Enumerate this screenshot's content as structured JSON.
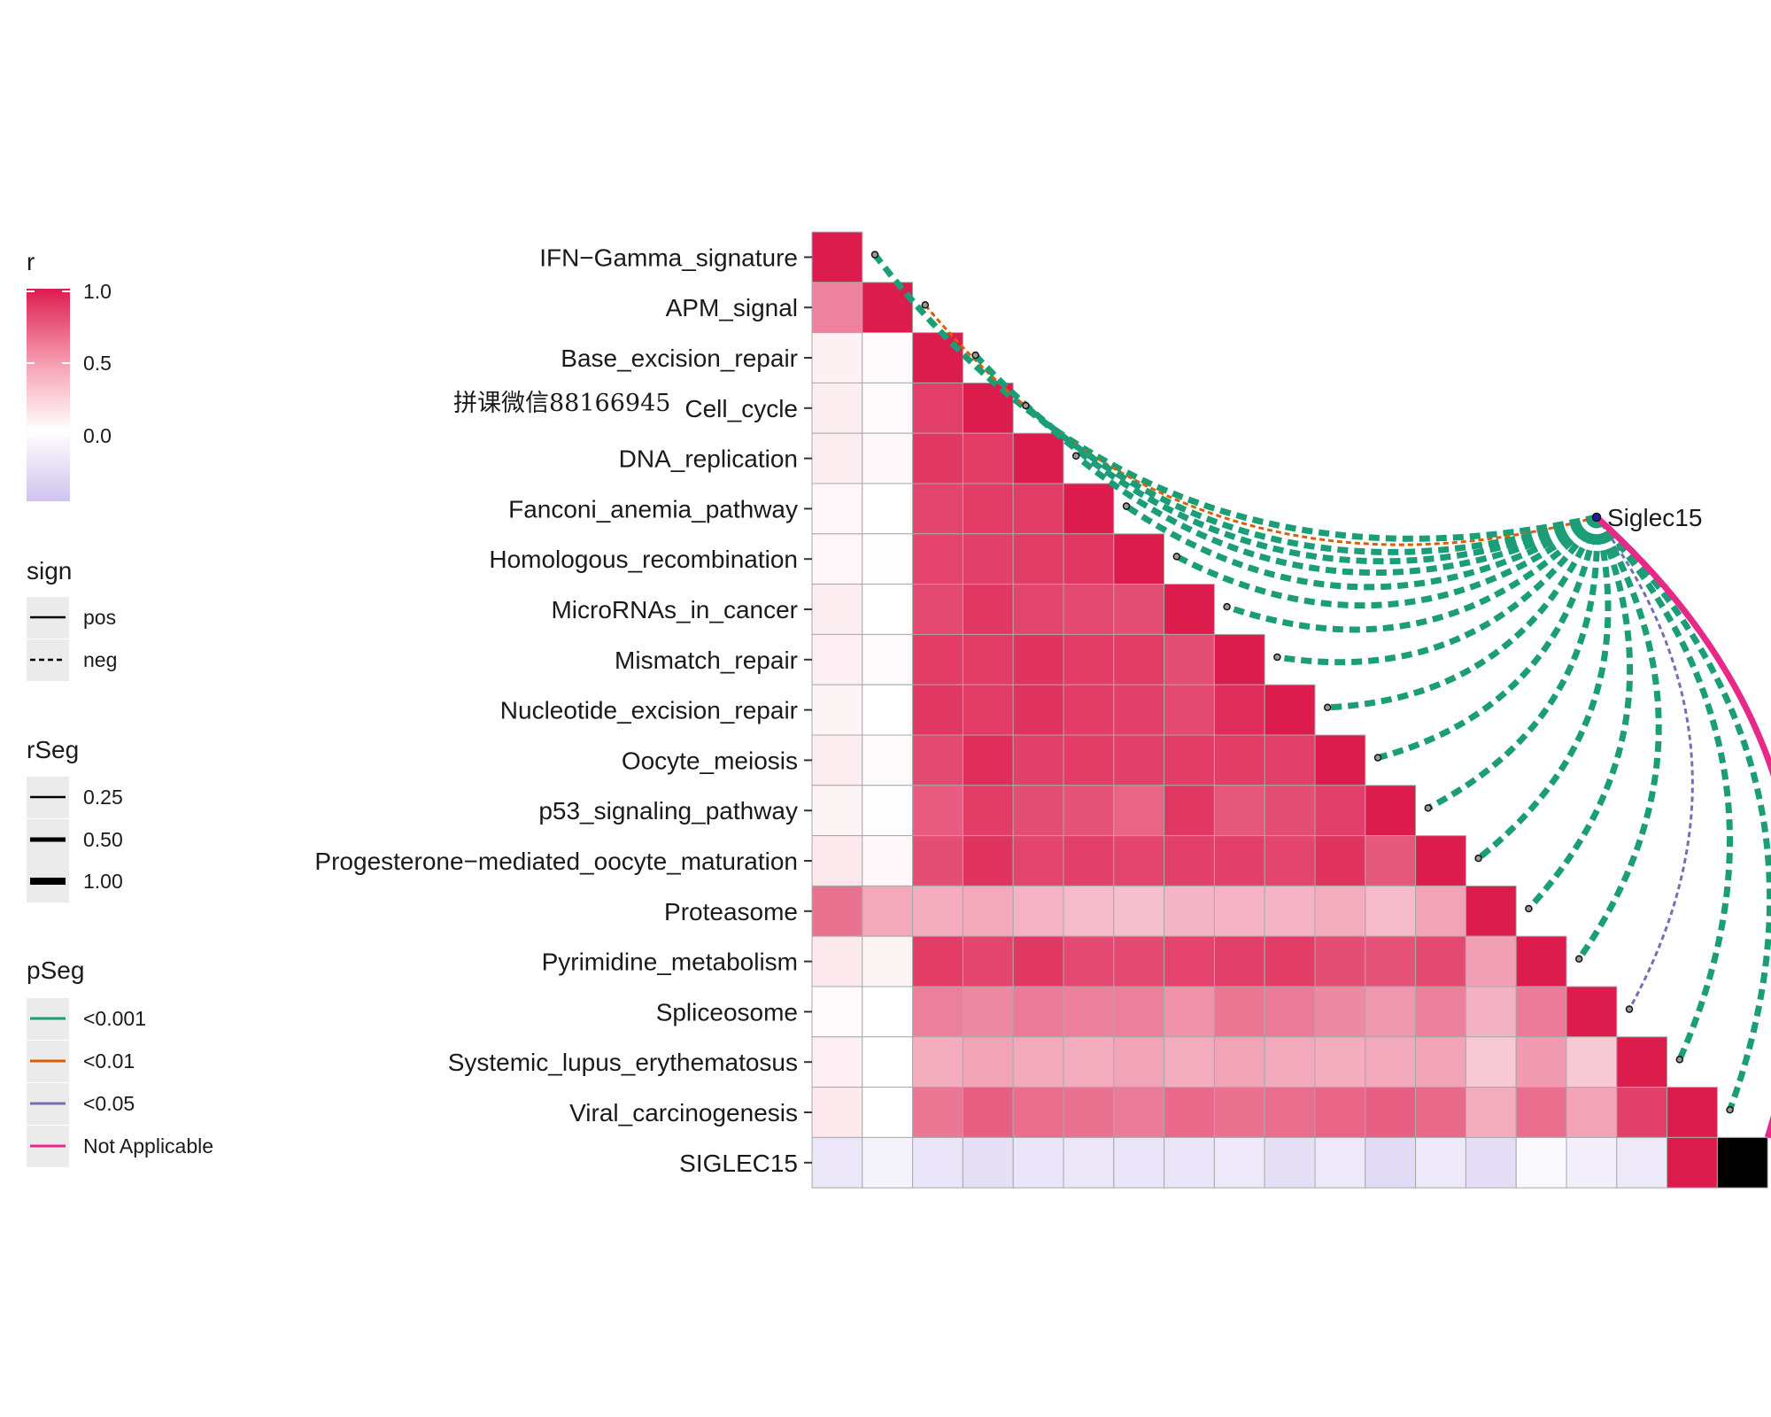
{
  "chart_data": {
    "type": "heatmap",
    "variables": [
      "IFN−Gamma_signature",
      "APM_signal",
      "Base_excision_repair",
      "Cell_cycle",
      "DNA_replication",
      "Fanconi_anemia_pathway",
      "Homologous_recombination",
      "MicroRNAs_in_cancer",
      "Mismatch_repair",
      "Nucleotide_excision_repair",
      "Oocyte_meiosis",
      "p53_signaling_pathway",
      "Progesterone−mediated_oocyte_maturation",
      "Proteasome",
      "Pyrimidine_metabolism",
      "Spliceosome",
      "Systemic_lupus_erythematosus",
      "Viral_carcinogenesis",
      "SIGLEC15"
    ],
    "matrix": [
      [
        1
      ],
      [
        0.55,
        1
      ],
      [
        0.06,
        0.02,
        1
      ],
      [
        0.08,
        0.02,
        0.85,
        1
      ],
      [
        0.08,
        0.03,
        0.88,
        0.86,
        1
      ],
      [
        0.04,
        0.0,
        0.82,
        0.86,
        0.86,
        1
      ],
      [
        0.04,
        -0.02,
        0.83,
        0.84,
        0.86,
        0.88,
        1
      ],
      [
        0.08,
        0.0,
        0.8,
        0.88,
        0.82,
        0.8,
        0.78,
        1
      ],
      [
        0.07,
        0.02,
        0.86,
        0.86,
        0.9,
        0.86,
        0.86,
        0.78,
        1
      ],
      [
        0.05,
        0.0,
        0.88,
        0.86,
        0.9,
        0.86,
        0.84,
        0.8,
        0.92,
        1
      ],
      [
        0.08,
        0.02,
        0.8,
        0.92,
        0.84,
        0.86,
        0.84,
        0.86,
        0.86,
        0.84,
        1
      ],
      [
        0.05,
        -0.02,
        0.72,
        0.86,
        0.78,
        0.76,
        0.68,
        0.88,
        0.74,
        0.78,
        0.84,
        1
      ],
      [
        0.1,
        0.03,
        0.78,
        0.9,
        0.82,
        0.84,
        0.82,
        0.84,
        0.84,
        0.82,
        0.9,
        0.74,
        1
      ],
      [
        0.62,
        0.38,
        0.36,
        0.38,
        0.33,
        0.3,
        0.28,
        0.32,
        0.33,
        0.33,
        0.36,
        0.3,
        0.4,
        1
      ],
      [
        0.1,
        0.05,
        0.86,
        0.82,
        0.88,
        0.8,
        0.8,
        0.83,
        0.84,
        0.86,
        0.78,
        0.76,
        0.8,
        0.42,
        1
      ],
      [
        0.02,
        0.0,
        0.56,
        0.52,
        0.58,
        0.56,
        0.56,
        0.48,
        0.6,
        0.58,
        0.52,
        0.46,
        0.56,
        0.34,
        0.58,
        1
      ],
      [
        0.07,
        0.0,
        0.36,
        0.4,
        0.38,
        0.36,
        0.4,
        0.36,
        0.4,
        0.38,
        0.36,
        0.38,
        0.4,
        0.24,
        0.44,
        0.24,
        1
      ],
      [
        0.1,
        0.0,
        0.6,
        0.7,
        0.64,
        0.62,
        0.58,
        0.66,
        0.62,
        0.64,
        0.68,
        0.7,
        0.66,
        0.36,
        0.64,
        0.4,
        0.84,
        1
      ],
      [
        -0.2,
        -0.1,
        -0.22,
        -0.26,
        -0.22,
        -0.2,
        -0.22,
        -0.22,
        -0.18,
        -0.26,
        -0.18,
        -0.3,
        -0.18,
        -0.28,
        -0.06,
        -0.14,
        -0.18,
        1
      ]
    ],
    "mantel": {
      "source": "Siglec15",
      "links": [
        {
          "to": "IFN−Gamma_signature",
          "r": 1.0,
          "sign": "neg",
          "p": "<0.001"
        },
        {
          "to": "APM_signal",
          "r": 0.25,
          "sign": "neg",
          "p": "<0.01"
        },
        {
          "to": "Base_excision_repair",
          "r": 1.0,
          "sign": "neg",
          "p": "<0.001"
        },
        {
          "to": "Cell_cycle",
          "r": 1.0,
          "sign": "neg",
          "p": "<0.001"
        },
        {
          "to": "DNA_replication",
          "r": 1.0,
          "sign": "neg",
          "p": "<0.001"
        },
        {
          "to": "Fanconi_anemia_pathway",
          "r": 1.0,
          "sign": "neg",
          "p": "<0.001"
        },
        {
          "to": "Homologous_recombination",
          "r": 1.0,
          "sign": "neg",
          "p": "<0.001"
        },
        {
          "to": "MicroRNAs_in_cancer",
          "r": 1.0,
          "sign": "neg",
          "p": "<0.001"
        },
        {
          "to": "Mismatch_repair",
          "r": 1.0,
          "sign": "neg",
          "p": "<0.001"
        },
        {
          "to": "Nucleotide_excision_repair",
          "r": 1.0,
          "sign": "neg",
          "p": "<0.001"
        },
        {
          "to": "Oocyte_meiosis",
          "r": 1.0,
          "sign": "neg",
          "p": "<0.001"
        },
        {
          "to": "p53_signaling_pathway",
          "r": 1.0,
          "sign": "neg",
          "p": "<0.001"
        },
        {
          "to": "Progesterone−mediated_oocyte_maturation",
          "r": 1.0,
          "sign": "neg",
          "p": "<0.001"
        },
        {
          "to": "Proteasome",
          "r": 1.0,
          "sign": "neg",
          "p": "<0.001"
        },
        {
          "to": "Pyrimidine_metabolism",
          "r": 1.0,
          "sign": "neg",
          "p": "<0.001"
        },
        {
          "to": "Spliceosome",
          "r": 0.25,
          "sign": "neg",
          "p": "<0.05"
        },
        {
          "to": "Systemic_lupus_erythematosus",
          "r": 1.0,
          "sign": "neg",
          "p": "<0.001"
        },
        {
          "to": "Viral_carcinogenesis",
          "r": 1.0,
          "sign": "neg",
          "p": "<0.001"
        },
        {
          "to": "SIGLEC15",
          "r": 1.0,
          "sign": "pos",
          "p": "Not Applicable"
        }
      ]
    },
    "color_scale": {
      "title": "r",
      "ticks": [
        "1.0",
        "0.5",
        "0.0"
      ],
      "range": [
        -0.5,
        1.0
      ],
      "colors": {
        "high": "#dd1c4e",
        "mid": "#ffffff",
        "low": "#cfc3ee"
      }
    },
    "legends": {
      "sign": {
        "title": "sign",
        "items": [
          "pos",
          "neg"
        ]
      },
      "rSeg": {
        "title": "rSeg",
        "items": [
          "0.25",
          "0.50",
          "1.00"
        ]
      },
      "pSeg": {
        "title": "pSeg",
        "items": [
          {
            "label": "<0.001",
            "color": "#1b9e77"
          },
          {
            "label": "<0.01",
            "color": "#d95f02"
          },
          {
            "label": "<0.05",
            "color": "#7570b3"
          },
          {
            "label": "Not Applicable",
            "color": "#e7298a"
          }
        ]
      }
    },
    "annotation": "拼课微信88166945"
  }
}
